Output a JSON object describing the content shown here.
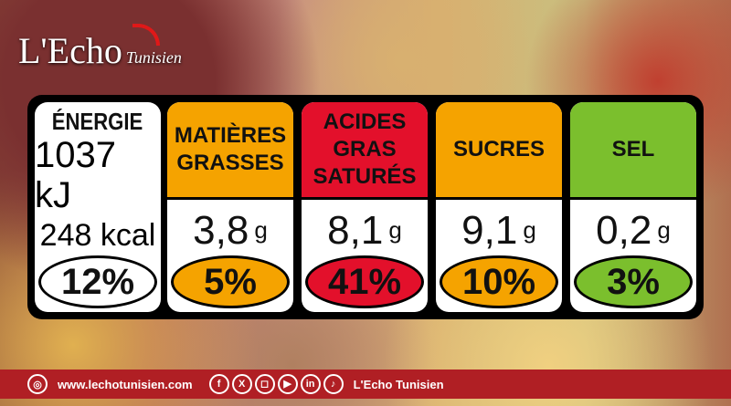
{
  "brand": {
    "name": "L'Echo",
    "sub": "Tunisien"
  },
  "label": {
    "energy": {
      "kj": "1037 kJ",
      "kcal": "248 kcal",
      "pct": "12%",
      "color": "#ffffff"
    },
    "items": [
      {
        "name1": "MATIÈRES",
        "name2": "GRASSES",
        "value": "3,8",
        "unit": "g",
        "pct": "5%",
        "color": "#f5a300"
      },
      {
        "name1": "ACIDES GRAS",
        "name2": "SATURÉS",
        "value": "8,1",
        "unit": "g",
        "pct": "41%",
        "color": "#e3102b"
      },
      {
        "name1": "SUCRES",
        "name2": "",
        "value": "9,1",
        "unit": "g",
        "pct": "10%",
        "color": "#f5a300"
      },
      {
        "name1": "SEL",
        "name2": "",
        "value": "0,2",
        "unit": "g",
        "pct": "3%",
        "color": "#7bbf2d"
      }
    ],
    "energy_title": "ÉNERGIE"
  },
  "footer": {
    "website": "www.lechotunisien.com",
    "name": "L'Echo Tunisien",
    "social": [
      "facebook-icon",
      "x-icon",
      "instagram-icon",
      "youtube-icon",
      "linkedin-icon",
      "tiktok-icon"
    ],
    "color": "#b01f24"
  }
}
